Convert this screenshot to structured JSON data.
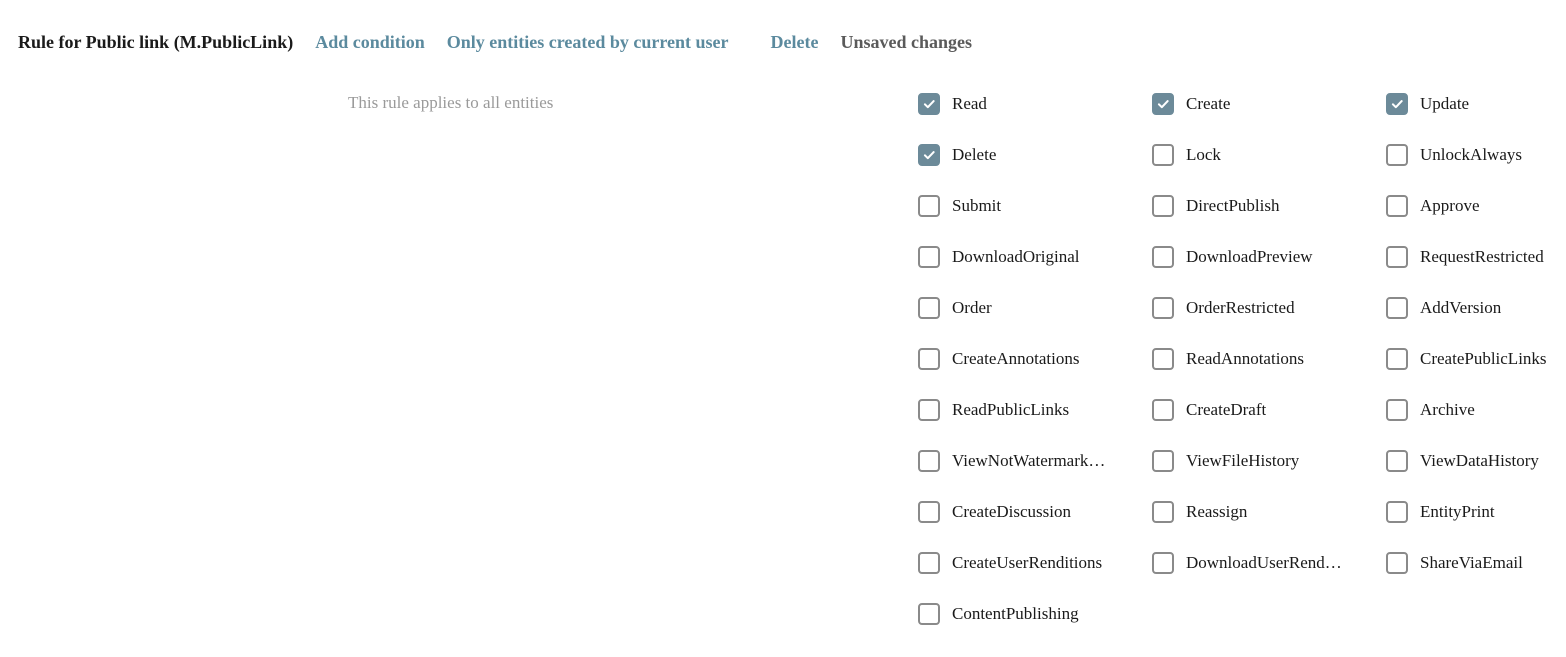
{
  "header": {
    "title": "Rule for Public link (M.PublicLink)",
    "add_condition": "Add condition",
    "only_entities": "Only entities created by current user",
    "delete": "Delete",
    "status": "Unsaved changes"
  },
  "body": {
    "applies_text": "This rule applies to all entities"
  },
  "colors": {
    "link": "#5b8a9e",
    "checkbox_checked_bg": "#6c8a99",
    "text_primary": "#1a1a1a",
    "text_muted": "#9a9a9a",
    "text_status": "#5a5a5a"
  },
  "permissions": [
    {
      "label": "Read",
      "checked": true
    },
    {
      "label": "Create",
      "checked": true
    },
    {
      "label": "Update",
      "checked": true
    },
    {
      "label": "Delete",
      "checked": true
    },
    {
      "label": "Lock",
      "checked": false
    },
    {
      "label": "UnlockAlways",
      "checked": false
    },
    {
      "label": "Submit",
      "checked": false
    },
    {
      "label": "DirectPublish",
      "checked": false
    },
    {
      "label": "Approve",
      "checked": false
    },
    {
      "label": "DownloadOriginal",
      "checked": false
    },
    {
      "label": "DownloadPreview",
      "checked": false
    },
    {
      "label": "RequestRestricted",
      "checked": false
    },
    {
      "label": "Order",
      "checked": false
    },
    {
      "label": "OrderRestricted",
      "checked": false
    },
    {
      "label": "AddVersion",
      "checked": false
    },
    {
      "label": "CreateAnnotations",
      "checked": false
    },
    {
      "label": "ReadAnnotations",
      "checked": false
    },
    {
      "label": "CreatePublicLinks",
      "checked": false
    },
    {
      "label": "ReadPublicLinks",
      "checked": false
    },
    {
      "label": "CreateDraft",
      "checked": false
    },
    {
      "label": "Archive",
      "checked": false
    },
    {
      "label": "ViewNotWatermark…",
      "checked": false
    },
    {
      "label": "ViewFileHistory",
      "checked": false
    },
    {
      "label": "ViewDataHistory",
      "checked": false
    },
    {
      "label": "CreateDiscussion",
      "checked": false
    },
    {
      "label": "Reassign",
      "checked": false
    },
    {
      "label": "EntityPrint",
      "checked": false
    },
    {
      "label": "CreateUserRenditions",
      "checked": false
    },
    {
      "label": "DownloadUserRend…",
      "checked": false
    },
    {
      "label": "ShareViaEmail",
      "checked": false
    },
    {
      "label": "ContentPublishing",
      "checked": false
    }
  ]
}
